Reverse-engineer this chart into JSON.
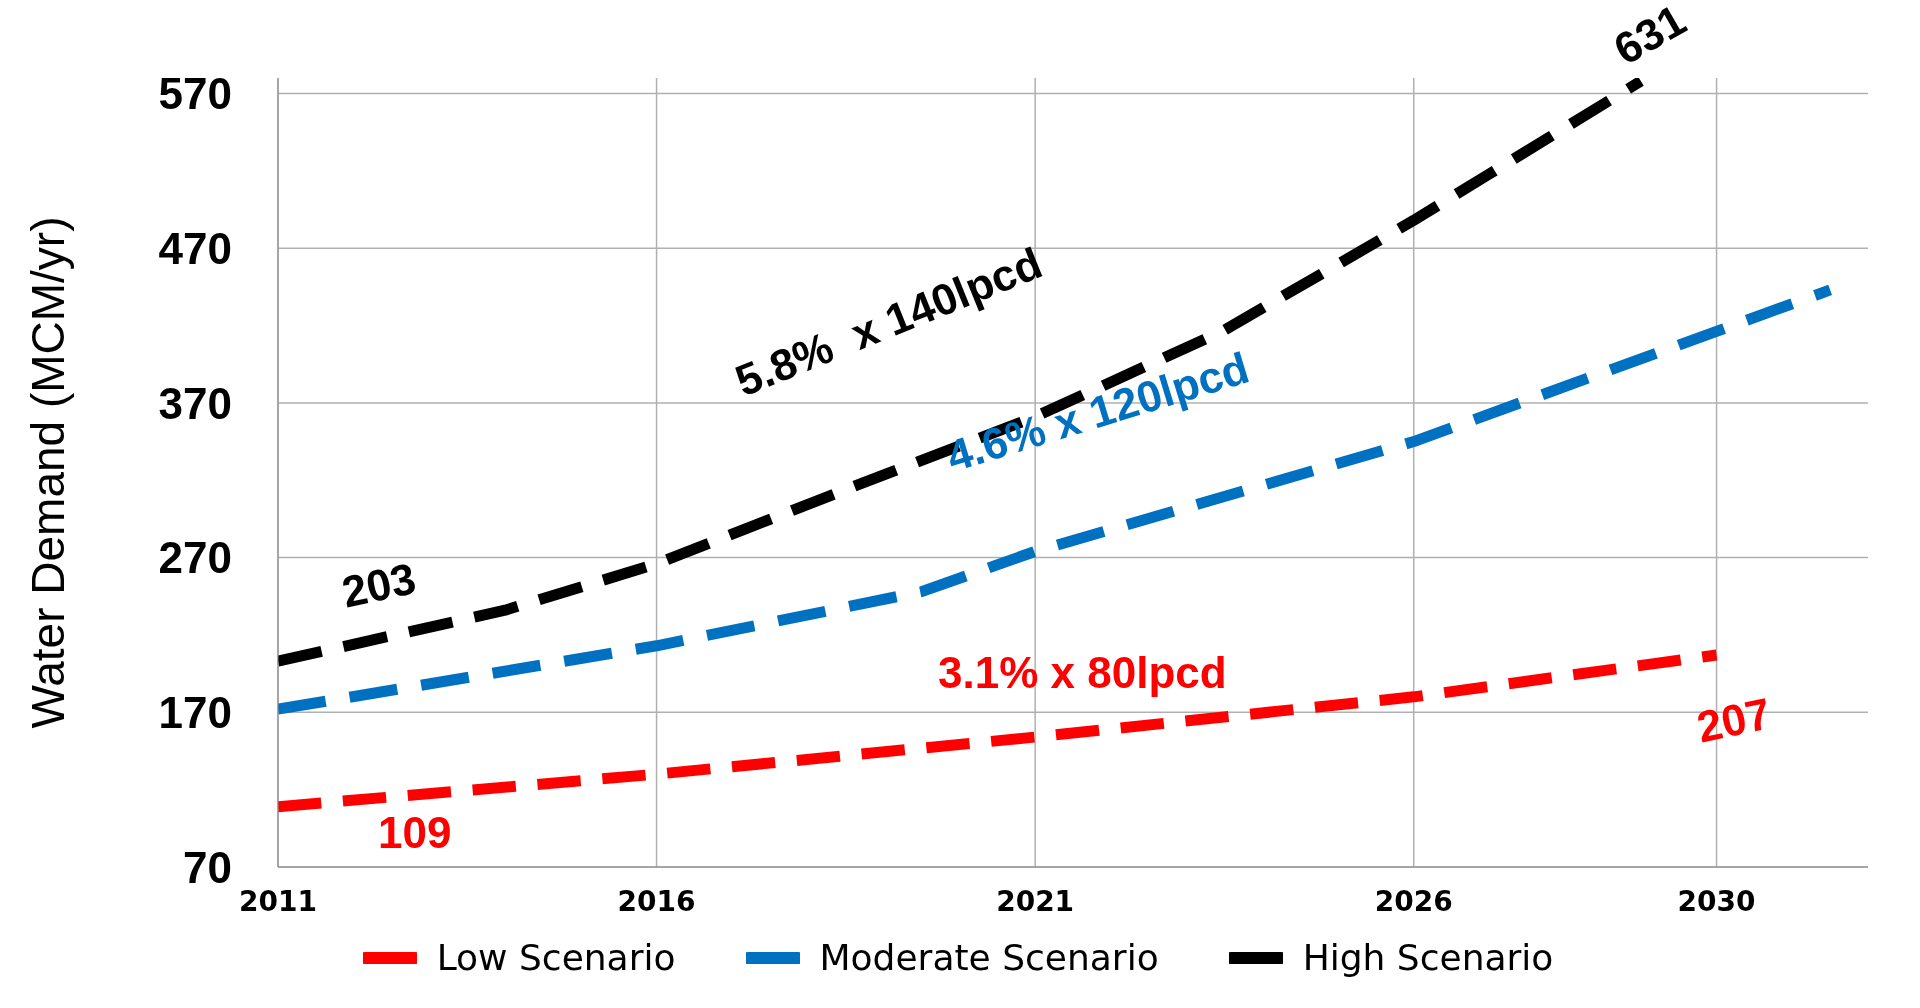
{
  "chart_data": {
    "type": "line",
    "ylabel": "Water Demand (MCM/yr)",
    "xlim": [
      2011,
      2032
    ],
    "xticks": [
      2011,
      2016,
      2021,
      2026,
      2030
    ],
    "ylim": [
      70,
      580
    ],
    "yticks": [
      70,
      170,
      270,
      370,
      470,
      570
    ],
    "grid": true,
    "legend": "bottom",
    "line_style": "dashed",
    "marker": "none",
    "series": [
      {
        "name": "Low Scenario",
        "color": "#ff0000",
        "x": [
          2011,
          2016,
          2021,
          2026,
          2030
        ],
        "values": [
          109,
          130,
          154,
          180,
          207
        ]
      },
      {
        "name": "Moderate Scenario",
        "color": "#0070c0",
        "x": [
          2011,
          2016,
          2019.5,
          2021,
          2026,
          2031.5
        ],
        "values": [
          172,
          213,
          248,
          274,
          345,
          443
        ]
      },
      {
        "name": "High Scenario",
        "color": "#000000",
        "x": [
          2011,
          2014,
          2016,
          2018.5,
          2021,
          2023.5,
          2026,
          2027,
          2029
        ],
        "values": [
          203,
          236,
          266,
          314,
          361,
          417,
          488,
          518,
          578
        ]
      }
    ],
    "annotations": [
      "109",
      "207",
      "203",
      "631",
      "3.1% x 80lpcd",
      "4.6% x 120lpcd",
      "5.8%  x 140lpcd"
    ]
  }
}
